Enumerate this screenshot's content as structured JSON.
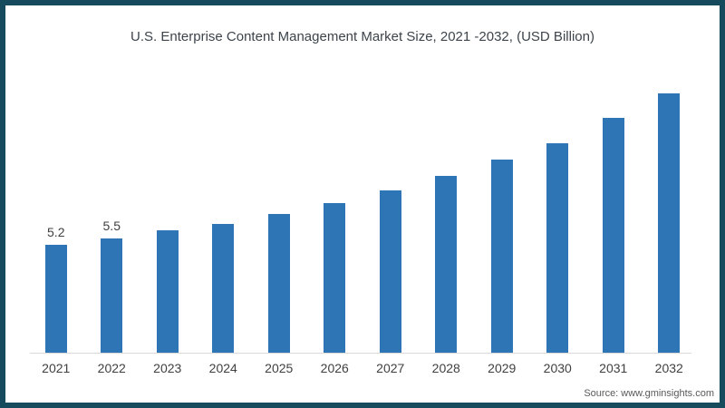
{
  "window": {
    "frame_color": "#154b5c",
    "background_color": "#ffffff"
  },
  "source": "Source: www.gminsights.com",
  "chart_data": {
    "type": "bar",
    "title": "U.S. Enterprise Content Management Market Size, 2021 -2032, (USD Billion)",
    "categories": [
      "2021",
      "2022",
      "2023",
      "2024",
      "2025",
      "2026",
      "2027",
      "2028",
      "2029",
      "2030",
      "2031",
      "2032"
    ],
    "values": [
      5.2,
      5.5,
      5.9,
      6.2,
      6.7,
      7.2,
      7.8,
      8.5,
      9.3,
      10.1,
      11.3,
      12.5
    ],
    "data_labels": [
      "5.2",
      "5.5",
      "",
      "",
      "",
      "",
      "",
      "",
      "",
      "",
      "",
      ""
    ],
    "xlabel": "",
    "ylabel": "",
    "ylim": [
      0,
      14
    ],
    "bar_color": "#2e75b6",
    "axis_line_color": "#d9d9d9",
    "grid": false,
    "legend": false
  }
}
